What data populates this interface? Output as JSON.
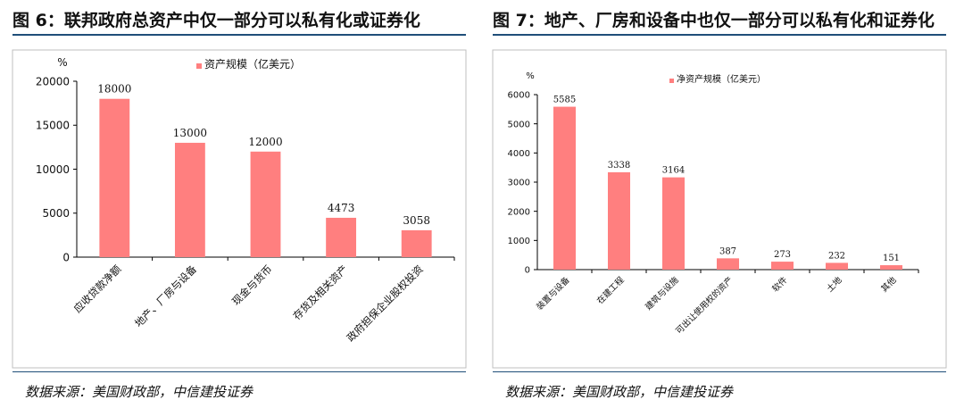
{
  "left": {
    "title": "图 6：联邦政府总资产中仅一部分可以私有化或证券化",
    "source": "数据来源：美国财政部，中信建投证券"
  },
  "right": {
    "title": "图 7：地产、厂房和设备中也仅一部分可以私有化和证券化",
    "source": "数据来源：美国财政部，中信建投证券"
  },
  "colors": {
    "bar": "#ff7f7f",
    "rule": "#1f4e79",
    "frame": "#bfbfbf"
  },
  "chart_data": [
    {
      "type": "bar",
      "unit_label": "%",
      "categories": [
        "应收贷款净额",
        "地产、厂房与设备",
        "现金与货币",
        "存货及相关资产",
        "政府担保企业股权投资"
      ],
      "series": [
        {
          "name": "资产规模（亿美元）",
          "values": [
            18000,
            13000,
            12000,
            4473,
            3058
          ]
        }
      ],
      "ylim": [
        0,
        20000
      ],
      "yticks": [
        0,
        5000,
        10000,
        15000,
        20000
      ],
      "grid": false,
      "legend": "top-center"
    },
    {
      "type": "bar",
      "unit_label": "%",
      "categories": [
        "装置与设备",
        "在建工程",
        "建筑与设施",
        "可出让使用权的资产",
        "软件",
        "土地",
        "其他"
      ],
      "series": [
        {
          "name": "净资产规模（亿美元）",
          "values": [
            5585,
            3338,
            3164,
            387,
            273,
            232,
            151
          ]
        }
      ],
      "ylim": [
        0,
        6000
      ],
      "yticks": [
        0,
        1000,
        2000,
        3000,
        4000,
        5000,
        6000
      ],
      "grid": false,
      "legend": "top-center"
    }
  ]
}
